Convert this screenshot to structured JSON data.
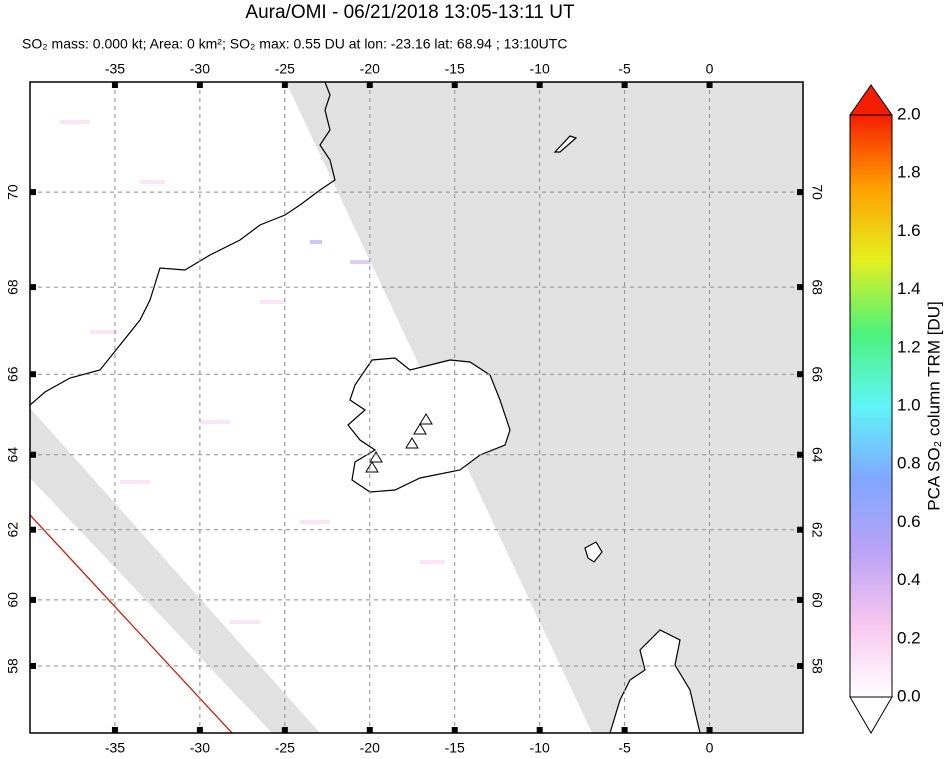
{
  "chart_data": {
    "type": "map",
    "projection": "mercator",
    "title": "Aura/OMI - 06/21/2018 13:05-13:11 UT",
    "subtitle": "SO₂ mass: 0.000 kt; Area: 0 km²; SO₂ max: 0.55 DU at lon: -23.16 lat: 68.94 ; 13:10UTC",
    "xlim": [
      -40,
      5.5
    ],
    "ylim": [
      55.85,
      72.1
    ],
    "xticks": [
      -35,
      -30,
      -25,
      -20,
      -15,
      -10,
      -5,
      0
    ],
    "yticks": [
      58,
      60,
      62,
      64,
      66,
      68,
      70
    ],
    "grid": true,
    "colorbar": {
      "label": "PCA SO₂ column TRM [DU]",
      "clim": [
        0,
        2
      ],
      "ticks": [
        {
          "value": 0,
          "label": "0.0"
        },
        {
          "value": 0.2,
          "label": "0.2"
        },
        {
          "value": 0.4,
          "label": "0.4"
        },
        {
          "value": 0.6,
          "label": "0.6"
        },
        {
          "value": 0.8,
          "label": "0.8"
        },
        {
          "value": 1,
          "label": "1.0"
        },
        {
          "value": 1.2,
          "label": "1.2"
        },
        {
          "value": 1.4,
          "label": "1.4"
        },
        {
          "value": 1.6,
          "label": "1.6"
        },
        {
          "value": 1.8,
          "label": "1.8"
        },
        {
          "value": 2,
          "label": "2.0"
        }
      ],
      "colors": [
        "#ffffff",
        "#f7c6ef",
        "#b9a2f5",
        "#7fa7ff",
        "#5ff5f7",
        "#4bf27a",
        "#e4f020",
        "#ffa000",
        "#f51e00"
      ]
    }
  }
}
